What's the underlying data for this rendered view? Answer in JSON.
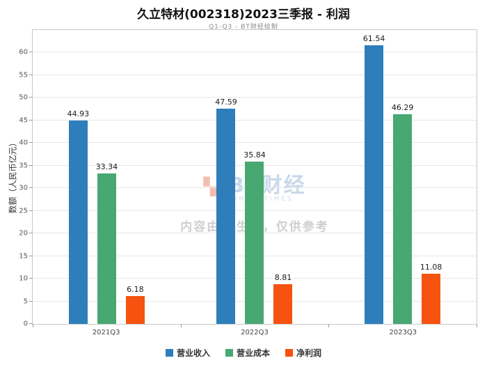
{
  "title": "久立特材(002318)2023三季报 - 利润",
  "subtitle": "Q1-Q3 - BT财经绘制",
  "watermark": {
    "logo": "BT财经",
    "logo_sub": "BUSINESSTIMES",
    "notice": "内容由AI生成，仅供参考"
  },
  "chart_data": {
    "type": "bar",
    "categories": [
      "2021Q3",
      "2022Q3",
      "2023Q3"
    ],
    "series": [
      {
        "name": "营业收入",
        "color": "#2E7EBC",
        "values": [
          44.93,
          47.59,
          61.54
        ]
      },
      {
        "name": "营业成本",
        "color": "#48A872",
        "values": [
          33.34,
          35.84,
          46.29
        ]
      },
      {
        "name": "净利润",
        "color": "#F5530F",
        "values": [
          6.18,
          8.81,
          11.08
        ]
      }
    ],
    "title": "久立特材(002318)2023三季报 - 利润",
    "xlabel": "",
    "ylabel": "数额（人民币亿元）",
    "ylim": [
      0,
      65
    ],
    "yticks": [
      0,
      5,
      10,
      15,
      20,
      25,
      30,
      35,
      40,
      45,
      50,
      55,
      60
    ],
    "grid": true,
    "legend_position": "bottom"
  }
}
